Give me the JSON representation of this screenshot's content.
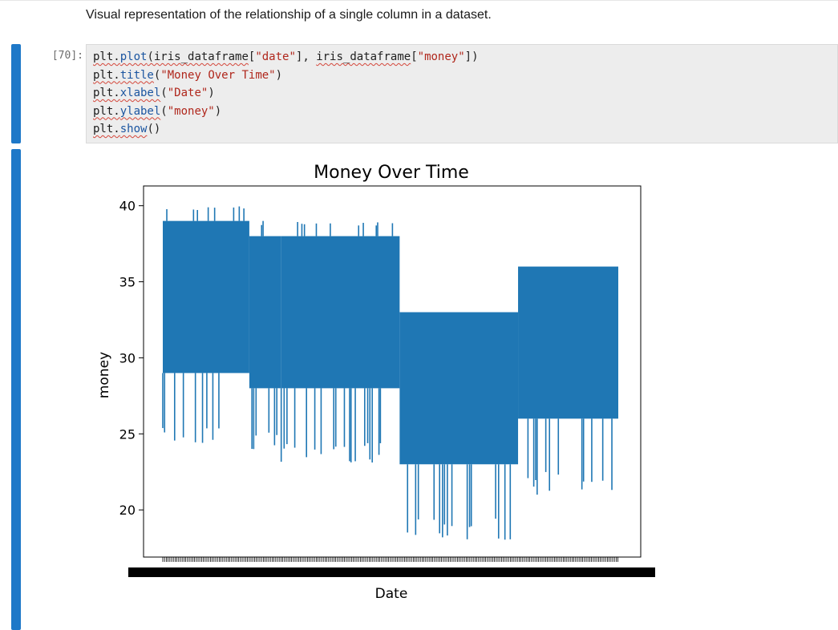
{
  "markdown": {
    "text": "Visual representation of the relationship of a single column in a dataset."
  },
  "code_cell": {
    "prompt": "[70]:",
    "lines": [
      "plt.plot(iris_dataframe[\"date\"], iris_dataframe[\"money\"])",
      "plt.title(\"Money Over Time\")",
      "plt.xlabel(\"Date\")",
      "plt.ylabel(\"money\")",
      "plt.show()"
    ]
  },
  "chart_data": {
    "type": "line",
    "title": "Money Over Time",
    "xlabel": "Date",
    "ylabel": "money",
    "yticks": [
      "20",
      "25",
      "30",
      "35",
      "40"
    ],
    "ylim": [
      16.9,
      41.3
    ],
    "grid": false,
    "color": "#1f77b4",
    "x_tick_note": "overlapping dense date tick labels",
    "segments": [
      {
        "x_range": [
          0.0,
          0.19
        ],
        "low": 29,
        "high": 39,
        "min_spikes": 24,
        "max_spikes": 40
      },
      {
        "x_range": [
          0.19,
          0.26
        ],
        "low": 28,
        "high": 38,
        "min_spikes": 24,
        "max_spikes": 39
      },
      {
        "x_range": [
          0.26,
          0.52
        ],
        "low": 28,
        "high": 38,
        "min_spikes": 23,
        "max_spikes": 39
      },
      {
        "x_range": [
          0.52,
          0.78
        ],
        "low": 23,
        "high": 33,
        "min_spikes": 18,
        "max_spikes": 33
      },
      {
        "x_range": [
          0.78,
          1.0
        ],
        "low": 26,
        "high": 36,
        "min_spikes": 21,
        "max_spikes": 36
      }
    ]
  }
}
